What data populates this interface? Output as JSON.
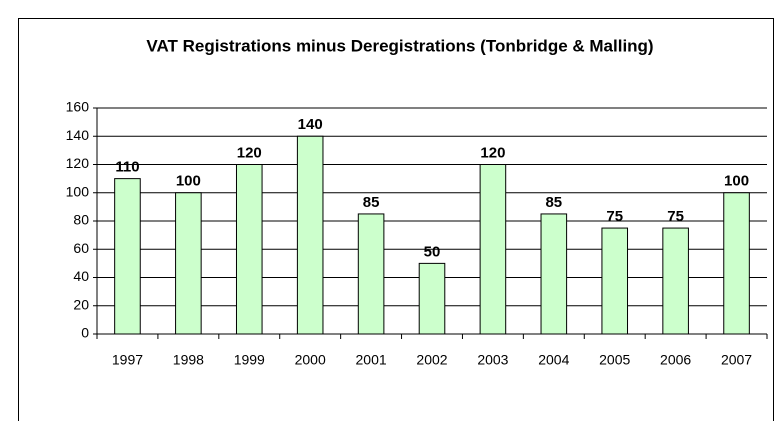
{
  "chart_data": {
    "type": "bar",
    "title": "VAT Registrations minus Deregistrations (Tonbridge & Malling)",
    "categories": [
      "1997",
      "1998",
      "1999",
      "2000",
      "2001",
      "2002",
      "2003",
      "2004",
      "2005",
      "2006",
      "2007"
    ],
    "values": [
      110,
      100,
      120,
      140,
      85,
      50,
      120,
      85,
      75,
      75,
      100
    ],
    "color": "#ccffcc",
    "ylim": [
      0,
      160
    ],
    "yticks": [
      0,
      20,
      40,
      60,
      80,
      100,
      120,
      140,
      160
    ],
    "grid": true
  }
}
